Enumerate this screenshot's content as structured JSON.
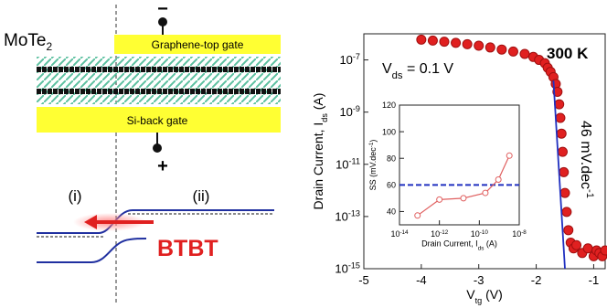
{
  "diagram": {
    "material": "MoTe",
    "material_sub": "2",
    "top_gate": "Graphene-top gate",
    "back_gate": "Si-back gate",
    "minus": "−",
    "plus": "+",
    "label_i": "(i)",
    "label_ii": "(ii)",
    "btbt": "BTBT"
  },
  "chart_data": [
    {
      "type": "scatter",
      "xlabel": "V",
      "xlabel_sub": "tg",
      "xlabel_end": " (V)",
      "ylabel": "Drain Current, I",
      "ylabel_sub": "ds",
      "ylabel_end": " (A)",
      "annotation_v": "V",
      "annotation_v_sub": "ds",
      "annotation_v_end": " = 0.1 V",
      "annotation_t": "300 K",
      "annotation_ss": "46 mV.dec",
      "annotation_ss_exp": "-1",
      "xscale": "linear",
      "yscale": "log",
      "xlim": [
        -5,
        -0.8
      ],
      "xticks": [
        -5,
        -4,
        -3,
        -2,
        -1
      ],
      "ylim": [
        1e-15,
        1e-06
      ],
      "yticks": [
        {
          "value": 1e-15,
          "label": "10",
          "exp": "-15"
        },
        {
          "value": 1e-13,
          "label": "10",
          "exp": "-13"
        },
        {
          "value": 1e-11,
          "label": "10",
          "exp": "-11"
        },
        {
          "value": 1e-09,
          "label": "10",
          "exp": "-9"
        },
        {
          "value": 1e-07,
          "label": "10",
          "exp": "-7"
        }
      ],
      "series": [
        {
          "color": "#e02020",
          "marker": "filled",
          "line": "none",
          "x": [
            -4.0,
            -3.8,
            -3.6,
            -3.4,
            -3.2,
            -3.0,
            -2.8,
            -2.6,
            -2.4,
            -2.2,
            -2.05,
            -1.95,
            -1.85,
            -1.8,
            -1.75,
            -1.7,
            -1.66,
            -1.63,
            -1.6,
            -1.58,
            -1.56,
            -1.54,
            -1.52,
            -1.5,
            -1.47,
            -1.44,
            -1.4,
            -1.35,
            -1.3,
            -1.2,
            -1.1,
            -1.0,
            -0.95,
            -0.9,
            -0.85,
            -0.8
          ],
          "values": [
            6e-07,
            5.5e-07,
            5e-07,
            4.5e-07,
            4e-07,
            3.5e-07,
            3e-07,
            2.5e-07,
            2.1e-07,
            1.7e-07,
            1.3e-07,
            1e-07,
            7.5e-08,
            5e-08,
            3.5e-08,
            2.2e-08,
            1.2e-08,
            6e-09,
            2e-09,
            6e-10,
            1.5e-10,
            3e-11,
            5e-12,
            8e-13,
            1.5e-13,
            3e-14,
            1e-14,
            6e-15,
            8e-15,
            4e-15,
            6e-15,
            3e-15,
            5e-15,
            4e-15,
            3e-15,
            5e-15
          ]
        },
        {
          "color": "#2030c0",
          "marker": "none",
          "line": "solid",
          "x": [
            -1.7,
            -1.5
          ],
          "values": [
            1.6e-08,
            1e-15
          ]
        }
      ]
    },
    {
      "type": "scatter",
      "xlabel": "Drain Current, I",
      "xlabel_sub": "ds",
      "xlabel_end": " (A)",
      "ylabel": "SS (mV.dec",
      "ylabel_exp": "-1",
      "ylabel_end": ")",
      "xscale": "log",
      "yscale": "linear",
      "xlim": [
        1e-14,
        1e-08
      ],
      "xticks": [
        {
          "value": 1e-14,
          "label": "10",
          "exp": "-14"
        },
        {
          "value": 1e-12,
          "label": "10",
          "exp": "-12"
        },
        {
          "value": 1e-10,
          "label": "10",
          "exp": "-10"
        },
        {
          "value": 1e-08,
          "label": "10",
          "exp": "-8"
        }
      ],
      "ylim": [
        30,
        120
      ],
      "yticks": [
        40,
        60,
        80,
        100,
        120
      ],
      "series": [
        {
          "color": "#2030c0",
          "marker": "none",
          "line": "dashed",
          "x": [
            1e-14,
            1e-08
          ],
          "values": [
            60,
            60
          ]
        },
        {
          "color": "#e06060",
          "marker": "open",
          "line": "solid",
          "x": [
            8e-14,
            1e-12,
            1.6e-11,
            2e-10,
            9e-10,
            3.2e-09
          ],
          "values": [
            37,
            49,
            50,
            54,
            64,
            82
          ]
        }
      ]
    }
  ]
}
